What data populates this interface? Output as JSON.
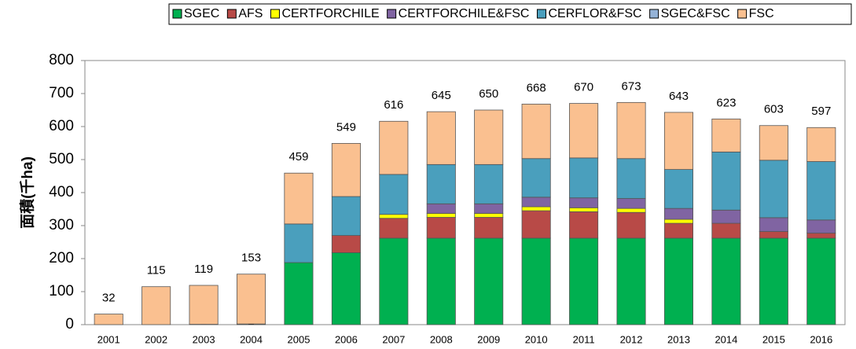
{
  "chart_data": {
    "type": "stacked-bar",
    "y_label": "面積(千ha)",
    "categories": [
      "2001",
      "2002",
      "2003",
      "2004",
      "2005",
      "2006",
      "2007",
      "2008",
      "2009",
      "2010",
      "2011",
      "2012",
      "2013",
      "2014",
      "2015",
      "2016"
    ],
    "series": [
      {
        "name": "SGEC",
        "color": "#00b050",
        "values": [
          0,
          0,
          0,
          0,
          188,
          218,
          262,
          262,
          262,
          262,
          262,
          262,
          262,
          262,
          262,
          262
        ]
      },
      {
        "name": "AFS",
        "color": "#b84a47",
        "values": [
          0,
          0,
          0,
          0,
          0,
          52,
          60,
          63,
          63,
          83,
          80,
          78,
          45,
          45,
          20,
          15
        ]
      },
      {
        "name": "CERTFORCHILE",
        "color": "#ffff00",
        "values": [
          0,
          0,
          0,
          0,
          0,
          0,
          12,
          12,
          12,
          12,
          12,
          12,
          12,
          0,
          0,
          0
        ]
      },
      {
        "name": "CERTFORCHILE&FSC",
        "color": "#8064a2",
        "values": [
          0,
          0,
          0,
          0,
          0,
          0,
          0,
          29,
          29,
          29,
          30,
          30,
          33,
          40,
          42,
          40
        ]
      },
      {
        "name": "CERFLOR&FSC",
        "color": "#4a9fbd",
        "values": [
          0,
          0,
          1,
          2,
          117,
          118,
          121,
          119,
          119,
          117,
          121,
          121,
          118,
          176,
          174,
          177
        ],
        "value_labels": [
          null,
          null,
          "1",
          "2",
          null,
          null,
          null,
          null,
          null,
          null,
          null,
          null,
          null,
          null,
          null,
          null
        ]
      },
      {
        "name": "SGEC&FSC",
        "color": "#95b3d7",
        "values": [
          0,
          0,
          0,
          0,
          0,
          0,
          0,
          0,
          0,
          0,
          0,
          0,
          0,
          0,
          0,
          0
        ]
      },
      {
        "name": "FSC",
        "color": "#fac090",
        "values": [
          32,
          115,
          118,
          151,
          154,
          161,
          161,
          160,
          165,
          165,
          165,
          170,
          173,
          100,
          105,
          103
        ]
      }
    ],
    "totals": [
      32,
      115,
      119,
      153,
      459,
      549,
      616,
      645,
      650,
      668,
      670,
      673,
      643,
      623,
      603,
      597
    ],
    "ylim": [
      0,
      800
    ],
    "yticks": [
      0,
      100,
      200,
      300,
      400,
      500,
      600,
      700,
      800
    ],
    "legend": "top"
  }
}
